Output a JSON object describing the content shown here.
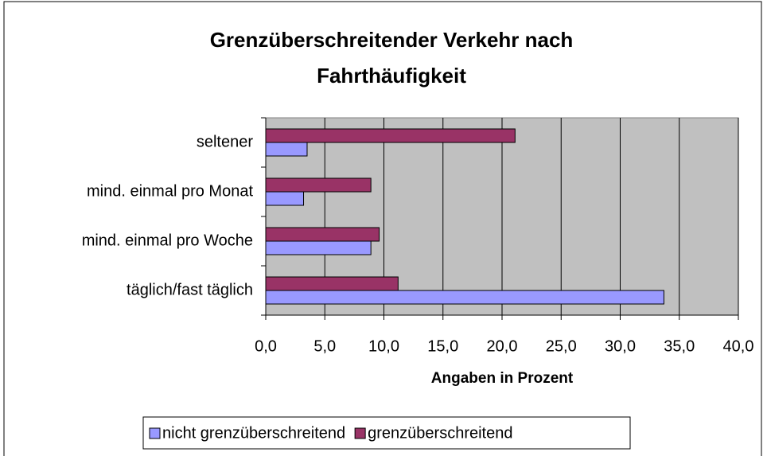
{
  "chart_data": {
    "type": "hbar",
    "title": "Grenzüberschreitender Verkehr nach Fahrthäufigkeit",
    "categories": [
      "seltener",
      "mind. einmal pro Monat",
      "mind. einmal pro Woche",
      "täglich/fast täglich"
    ],
    "series": [
      {
        "name": "nicht grenzüberschreitend",
        "color": "#9999ff",
        "values": [
          3.5,
          3.2,
          8.9,
          33.7
        ]
      },
      {
        "name": "grenzüberschreitend",
        "color": "#993366",
        "values": [
          21.1,
          8.9,
          9.6,
          11.2
        ]
      }
    ],
    "xlabel": "Angaben in Prozent",
    "xlim": [
      0,
      40
    ],
    "xticks": [
      {
        "value": 0,
        "label": "0,0"
      },
      {
        "value": 5,
        "label": "5,0"
      },
      {
        "value": 10,
        "label": "10,0"
      },
      {
        "value": 15,
        "label": "15,0"
      },
      {
        "value": 20,
        "label": "20,0"
      },
      {
        "value": 25,
        "label": "25,0"
      },
      {
        "value": 30,
        "label": "30,0"
      },
      {
        "value": 35,
        "label": "35,0"
      },
      {
        "value": 40,
        "label": "40,0"
      }
    ],
    "grid": true,
    "legend": "bottom"
  }
}
